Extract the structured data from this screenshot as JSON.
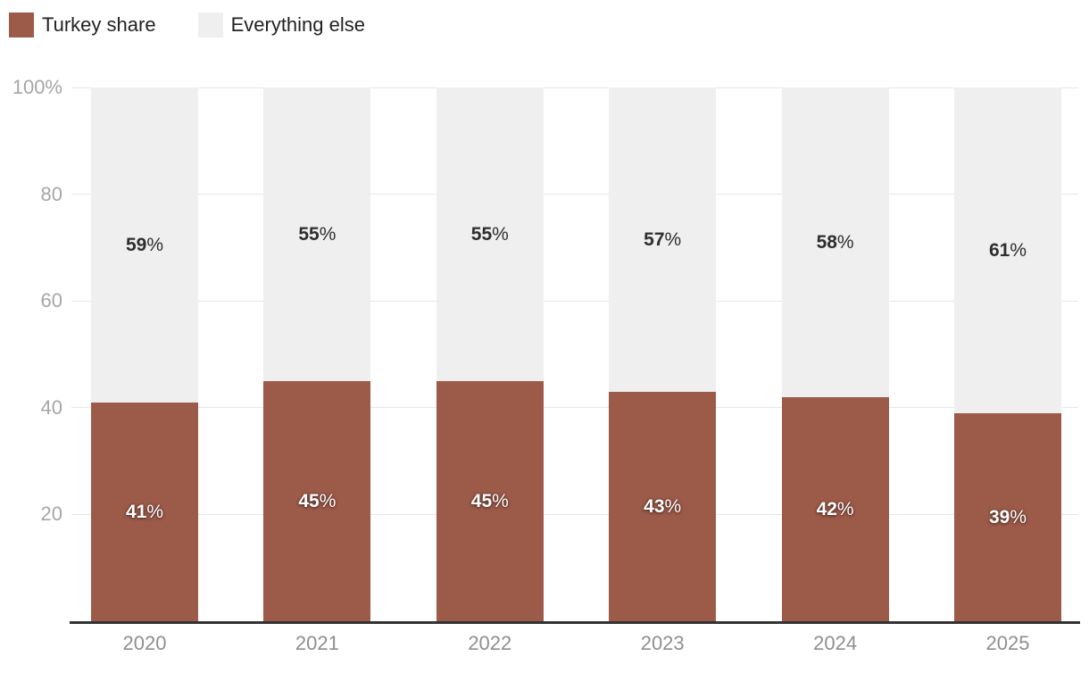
{
  "chart_data": {
    "type": "bar",
    "stacked": true,
    "orientation": "vertical",
    "categories": [
      "2020",
      "2021",
      "2022",
      "2023",
      "2024",
      "2025"
    ],
    "series": [
      {
        "name": "Turkey share",
        "color": "#9c5a49",
        "values": [
          41,
          45,
          45,
          43,
          42,
          39
        ],
        "label_style": "on-dark"
      },
      {
        "name": "Everything else",
        "color": "#efefef",
        "values": [
          59,
          55,
          55,
          57,
          58,
          61
        ],
        "label_style": "on-light"
      }
    ],
    "value_suffix": "%",
    "ylim": [
      0,
      100
    ],
    "yticks": [
      {
        "value": 100,
        "label": "100%"
      },
      {
        "value": 80,
        "label": "80"
      },
      {
        "value": 60,
        "label": "60"
      },
      {
        "value": 40,
        "label": "40"
      },
      {
        "value": 20,
        "label": "20"
      }
    ],
    "grid": true,
    "legend_position": "top-left",
    "colors": {
      "gridline": "#e7e7e7",
      "axis_line": "#333333",
      "ytick_label": "#a6a6a6",
      "xtick_label": "#8f8f8f",
      "legend_text": "#222222"
    }
  }
}
